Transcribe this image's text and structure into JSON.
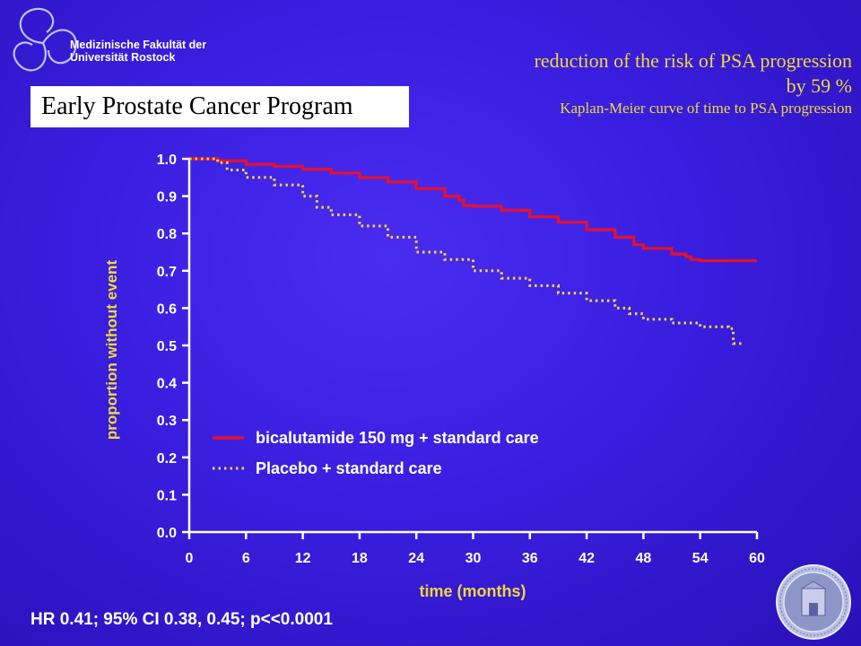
{
  "logo": {
    "line1": "Medizinische Fakultät der",
    "line2": "Universität Rostock",
    "icon": "triskele-logo-icon"
  },
  "headline": {
    "line1": "reduction of the risk of PSA progression",
    "line2": "by 59 %",
    "line3": "Kaplan-Meier curve of time to PSA progression"
  },
  "program_label": "Early Prostate Cancer Program",
  "footer": "HR 0.41; 95% CI 0.38, 0.45; p<<0.0001",
  "seal": {
    "icon": "university-seal-icon"
  },
  "colors": {
    "background": "#3a1ee0",
    "accent_yellow": "#f0d83a",
    "bicalutamide_line": "#e8102a",
    "placebo_line": "#f0d83a"
  },
  "chart_data": {
    "type": "line",
    "title": "",
    "xlabel": "time (months)",
    "ylabel": "proportion without event",
    "xlim": [
      0,
      60
    ],
    "ylim": [
      0,
      1
    ],
    "x_ticks": [
      "0",
      "6",
      "12",
      "18",
      "24",
      "30",
      "36",
      "42",
      "48",
      "54",
      "60"
    ],
    "y_ticks": [
      "0.0",
      "0.1",
      "0.2",
      "0.3",
      "0.4",
      "0.5",
      "0.6",
      "0.7",
      "0.8",
      "0.9",
      "1.0"
    ],
    "legend_position": "bottom-left",
    "grid": false,
    "series": [
      {
        "name": "bicalutamide 150 mg + standard care",
        "style": "solid",
        "color": "#e8102a",
        "points": [
          [
            0,
            1.0
          ],
          [
            3,
            0.995
          ],
          [
            6,
            0.985
          ],
          [
            9,
            0.98
          ],
          [
            12,
            0.972
          ],
          [
            15,
            0.962
          ],
          [
            18,
            0.95
          ],
          [
            21,
            0.938
          ],
          [
            24,
            0.92
          ],
          [
            27,
            0.9
          ],
          [
            28.5,
            0.89
          ],
          [
            29,
            0.875
          ],
          [
            30,
            0.873
          ],
          [
            33,
            0.862
          ],
          [
            36,
            0.845
          ],
          [
            39,
            0.83
          ],
          [
            42,
            0.81
          ],
          [
            45,
            0.79
          ],
          [
            47,
            0.77
          ],
          [
            48,
            0.76
          ],
          [
            51,
            0.745
          ],
          [
            52.5,
            0.738
          ],
          [
            53,
            0.73
          ],
          [
            54,
            0.727
          ],
          [
            57,
            0.727
          ],
          [
            60,
            0.727
          ]
        ]
      },
      {
        "name": "Placebo + standard care",
        "style": "dotted",
        "color": "#f0d83a",
        "points": [
          [
            0,
            1.0
          ],
          [
            3,
            0.99
          ],
          [
            4,
            0.97
          ],
          [
            6,
            0.95
          ],
          [
            9,
            0.93
          ],
          [
            12,
            0.9
          ],
          [
            13.5,
            0.87
          ],
          [
            15,
            0.85
          ],
          [
            18,
            0.82
          ],
          [
            21,
            0.79
          ],
          [
            24,
            0.75
          ],
          [
            27,
            0.73
          ],
          [
            30,
            0.7
          ],
          [
            33,
            0.68
          ],
          [
            36,
            0.66
          ],
          [
            39,
            0.64
          ],
          [
            42,
            0.62
          ],
          [
            45,
            0.6
          ],
          [
            46.5,
            0.585
          ],
          [
            48,
            0.57
          ],
          [
            51,
            0.56
          ],
          [
            54,
            0.55
          ],
          [
            57,
            0.545
          ],
          [
            57.5,
            0.505
          ],
          [
            58.5,
            0.5
          ]
        ]
      }
    ]
  }
}
